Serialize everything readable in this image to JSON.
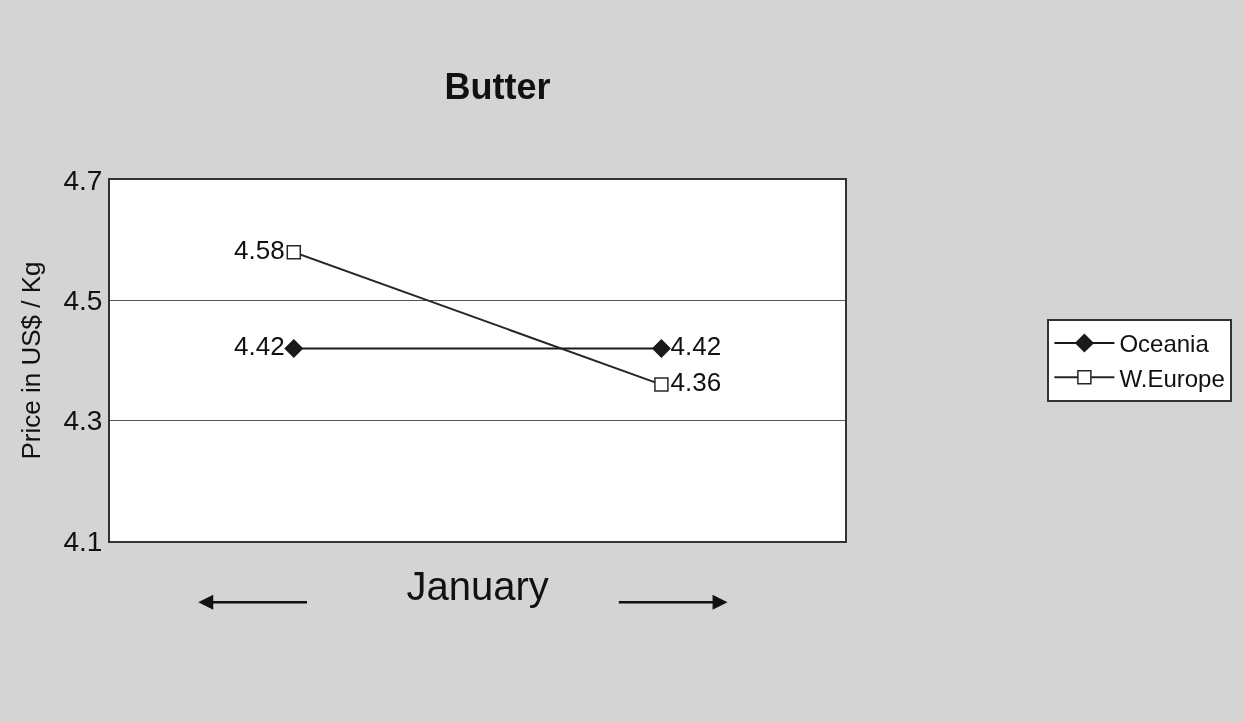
{
  "chart_data": {
    "type": "line",
    "title": "Butter",
    "xlabel": "January",
    "ylabel": "Price in US$ / Kg",
    "categories": [
      null,
      null
    ],
    "series": [
      {
        "name": "Oceania",
        "color": "#1a1a1a",
        "marker": "diamond",
        "values": [
          4.42,
          4.42
        ]
      },
      {
        "name": "W.Europe",
        "color": "#262626",
        "marker": "square",
        "values": [
          4.58,
          4.36
        ]
      }
    ],
    "ylim": [
      4.1,
      4.7
    ],
    "yticks": [
      4.1,
      4.3,
      4.5,
      4.7
    ],
    "grid": "y",
    "legend": "right",
    "tick_labels": "y",
    "data_labels": true
  }
}
